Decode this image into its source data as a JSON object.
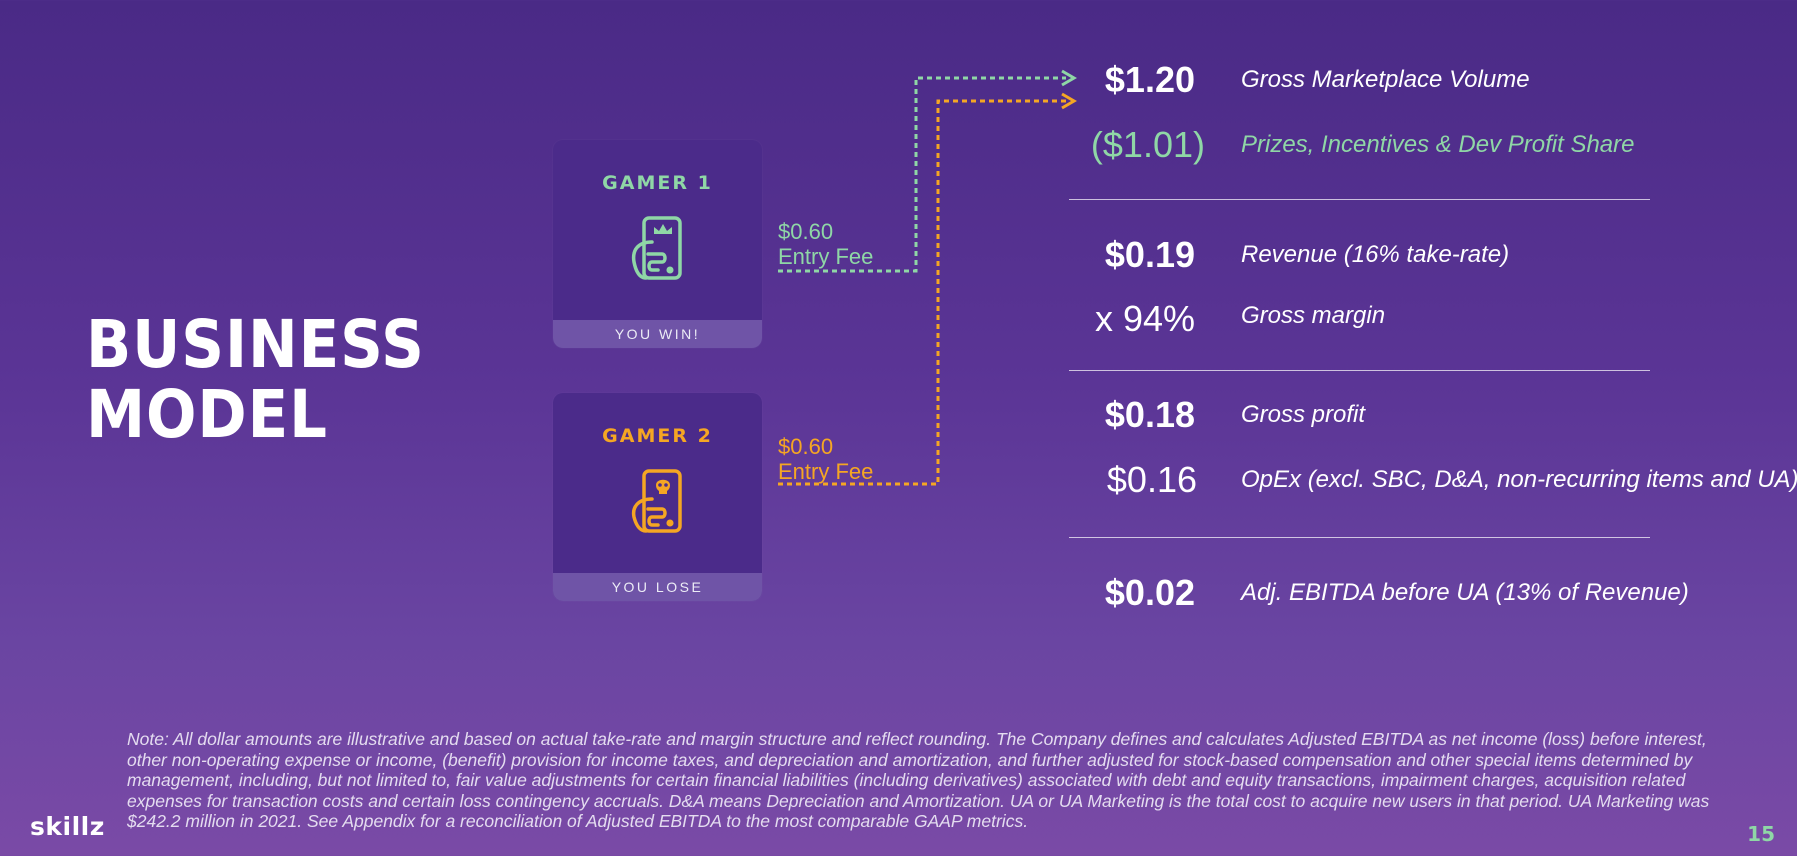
{
  "slide": {
    "title_line1": "BUSINESS",
    "title_line2": "MODEL",
    "logo_text": "skillz",
    "page_number": "15"
  },
  "colors": {
    "green": "#8fd7a6",
    "orange": "#f5a623",
    "background": "#5b3596"
  },
  "gamers": [
    {
      "label": "GAMER 1",
      "icon": "phone-crown-icon",
      "result": "YOU WIN!",
      "fee_amount": "$0.60",
      "fee_label": "Entry Fee"
    },
    {
      "label": "GAMER 2",
      "icon": "phone-skull-icon",
      "result": "YOU LOSE",
      "fee_amount": "$0.60",
      "fee_label": "Entry Fee"
    }
  ],
  "metrics": [
    {
      "amount": "$1.20",
      "label": "Gross Marketplace Volume"
    },
    {
      "amount": "($1.01)",
      "label": "Prizes, Incentives & Dev Profit Share"
    },
    {
      "amount": "$0.19",
      "label": "Revenue  (16% take-rate)"
    },
    {
      "amount": "x  94%",
      "label": "Gross margin"
    },
    {
      "amount": "$0.18",
      "label": "Gross profit"
    },
    {
      "amount": "$0.16",
      "label": "OpEx (excl. SBC, D&A, non-recurring items and UA)"
    },
    {
      "amount": "$0.02",
      "label": "Adj. EBITDA before UA (13% of Revenue)"
    }
  ],
  "note": "Note: All dollar amounts are illustrative and based on actual take-rate and margin structure and reflect rounding. The Company defines and calculates Adjusted EBITDA as net income (loss) before interest, other non-operating expense or income, (benefit) provision for income taxes, and depreciation and amortization, and further adjusted for stock-based compensation and other special items determined by management, including, but not limited to, fair value adjustments for certain financial liabilities (including derivatives) associated with debt and equity transactions, impairment charges, acquisition related expenses for transaction costs and certain loss contingency accruals. D&A means Depreciation and Amortization. UA or UA Marketing is the total cost to acquire new users in that period. UA Marketing was $242.2 million in 2021. See Appendix for a reconciliation of Adjusted EBITDA to the most comparable GAAP metrics."
}
